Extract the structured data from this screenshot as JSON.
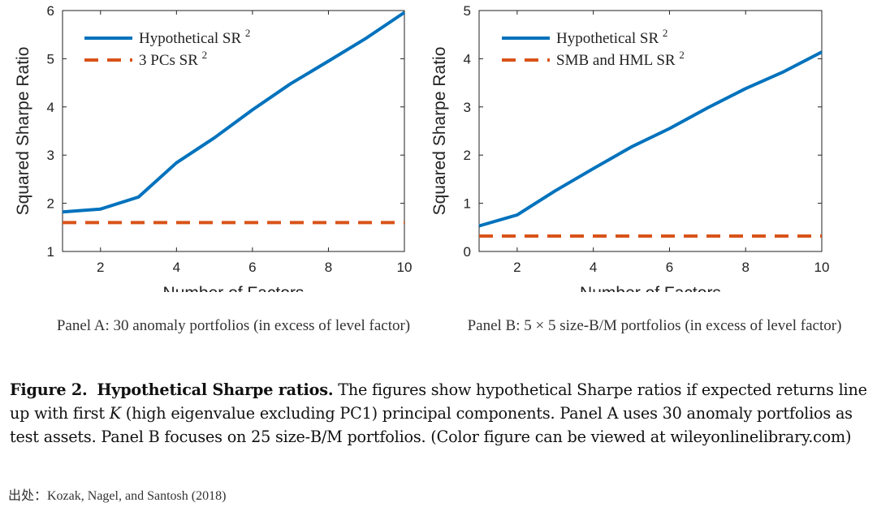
{
  "chart_data": [
    {
      "type": "line",
      "xlabel": "Number of Factors",
      "ylabel": "Squared Sharpe Ratio",
      "xlim": [
        1,
        10
      ],
      "ylim": [
        1,
        6
      ],
      "xticks": [
        2,
        4,
        6,
        8,
        10
      ],
      "yticks": [
        1,
        2,
        3,
        4,
        5,
        6
      ],
      "grid": false,
      "legend_position": "top-left",
      "series": [
        {
          "name": "Hypothetical SR",
          "superscript": "2",
          "style": "solid",
          "color": "#0072BD",
          "x": [
            1,
            2,
            3,
            4,
            5,
            6,
            7,
            8,
            9,
            10
          ],
          "y": [
            1.82,
            1.88,
            2.13,
            2.84,
            3.36,
            3.94,
            4.48,
            4.95,
            5.43,
            5.96
          ]
        },
        {
          "name": "3 PCs SR",
          "superscript": "2",
          "style": "dashed",
          "color": "#D95319",
          "x": [
            1,
            10
          ],
          "y": [
            1.6,
            1.6
          ]
        }
      ]
    },
    {
      "type": "line",
      "xlabel": "Number of Factors",
      "ylabel": "Squared Sharpe Ratio",
      "xlim": [
        1,
        10
      ],
      "ylim": [
        0,
        5
      ],
      "xticks": [
        2,
        4,
        6,
        8,
        10
      ],
      "yticks": [
        0,
        1,
        2,
        3,
        4,
        5
      ],
      "grid": false,
      "legend_position": "top-left",
      "series": [
        {
          "name": "Hypothetical SR",
          "superscript": "2",
          "style": "solid",
          "color": "#0072BD",
          "x": [
            1,
            2,
            3,
            4,
            5,
            6,
            7,
            8,
            9,
            10
          ],
          "y": [
            0.53,
            0.76,
            1.26,
            1.72,
            2.17,
            2.55,
            2.98,
            3.38,
            3.73,
            4.14
          ]
        },
        {
          "name": "SMB and HML SR",
          "superscript": "2",
          "style": "dashed",
          "color": "#D95319",
          "x": [
            1,
            10
          ],
          "y": [
            0.32,
            0.32
          ]
        }
      ]
    }
  ],
  "panel_captions": [
    "Panel A: 30 anomaly portfolios (in excess of level factor)",
    "Panel B: 5 × 5 size-B/M portfolios (in excess of level factor)"
  ],
  "caption": {
    "label": "Figure 2.",
    "title": "Hypothetical Sharpe ratios.",
    "text_before_k": "The figures show hypothetical Sharpe ratios if expected returns line up with first",
    "k": "K",
    "text_after_k": "(high eigenvalue excluding PC1) principal components. Panel A uses 30 anomaly portfolios as test assets. Panel B focuses on 25 size-B/M portfolios. (Color figure can be viewed at wileyonlinelibrary.com)"
  },
  "source": "出处：Kozak, Nagel, and Santosh (2018)"
}
